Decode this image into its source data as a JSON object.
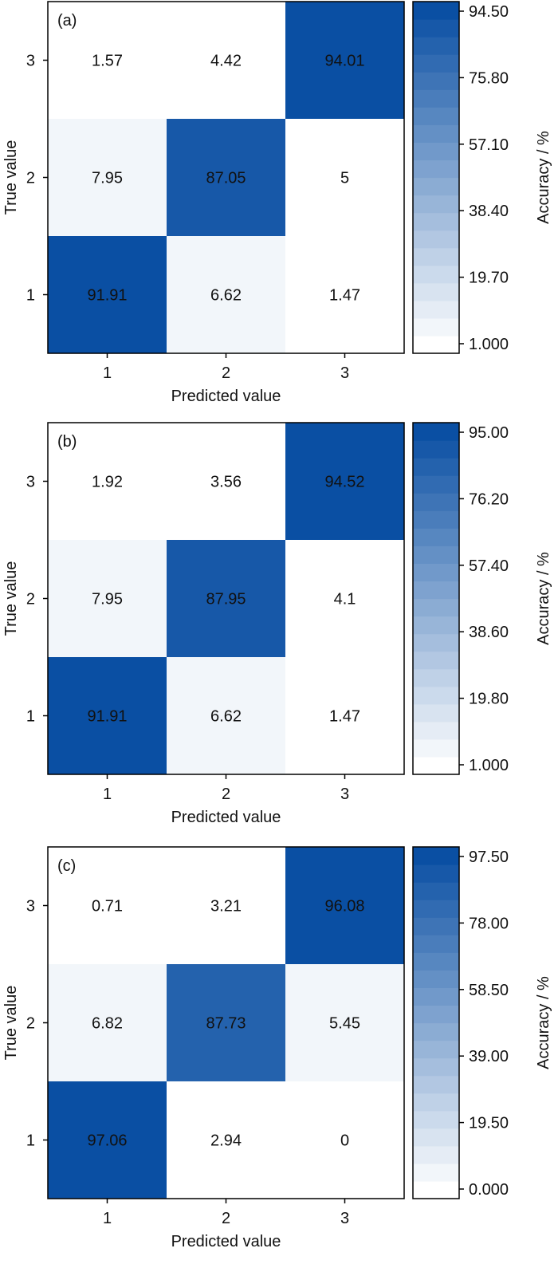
{
  "chart_data": [
    {
      "type": "heatmap",
      "panel_label": "(a)",
      "xlabel": "Predicted value",
      "ylabel": "True value",
      "x_categories": [
        "1",
        "2",
        "3"
      ],
      "y_categories": [
        "1",
        "2",
        "3"
      ],
      "matrix_rows_top_to_bottom": [
        {
          "true_value": "3",
          "values": [
            1.57,
            4.42,
            94.01
          ],
          "labels": [
            "1.57",
            "4.42",
            "94.01"
          ]
        },
        {
          "true_value": "2",
          "values": [
            7.95,
            87.05,
            5
          ],
          "labels": [
            "7.95",
            "87.05",
            "5"
          ]
        },
        {
          "true_value": "1",
          "values": [
            91.91,
            6.62,
            1.47
          ],
          "labels": [
            "91.91",
            "6.62",
            "1.47"
          ]
        }
      ],
      "colorbar": {
        "label": "Accuracy / %",
        "min": 1.0,
        "max": 94.5,
        "tick_labels_top_to_bottom": [
          "94.50",
          "75.80",
          "57.10",
          "38.40",
          "19.70",
          "1.000"
        ],
        "color_low": "#ffffff",
        "color_high": "#0a4fa3"
      }
    },
    {
      "type": "heatmap",
      "panel_label": "(b)",
      "xlabel": "Predicted value",
      "ylabel": "True value",
      "x_categories": [
        "1",
        "2",
        "3"
      ],
      "y_categories": [
        "1",
        "2",
        "3"
      ],
      "matrix_rows_top_to_bottom": [
        {
          "true_value": "3",
          "values": [
            1.92,
            3.56,
            94.52
          ],
          "labels": [
            "1.92",
            "3.56",
            "94.52"
          ]
        },
        {
          "true_value": "2",
          "values": [
            7.95,
            87.95,
            4.1
          ],
          "labels": [
            "7.95",
            "87.95",
            "4.1"
          ]
        },
        {
          "true_value": "1",
          "values": [
            91.91,
            6.62,
            1.47
          ],
          "labels": [
            "91.91",
            "6.62",
            "1.47"
          ]
        }
      ],
      "colorbar": {
        "label": "Accuracy / %",
        "min": 1.0,
        "max": 95.0,
        "tick_labels_top_to_bottom": [
          "95.00",
          "76.20",
          "57.40",
          "38.60",
          "19.80",
          "1.000"
        ],
        "color_low": "#ffffff",
        "color_high": "#0a4fa3"
      }
    },
    {
      "type": "heatmap",
      "panel_label": "(c)",
      "xlabel": "Predicted value",
      "ylabel": "True value",
      "x_categories": [
        "1",
        "2",
        "3"
      ],
      "y_categories": [
        "1",
        "2",
        "3"
      ],
      "matrix_rows_top_to_bottom": [
        {
          "true_value": "3",
          "values": [
            0.71,
            3.21,
            96.08
          ],
          "labels": [
            "0.71",
            "3.21",
            "96.08"
          ]
        },
        {
          "true_value": "2",
          "values": [
            6.82,
            87.73,
            5.45
          ],
          "labels": [
            "6.82",
            "87.73",
            "5.45"
          ]
        },
        {
          "true_value": "1",
          "values": [
            97.06,
            2.94,
            0
          ],
          "labels": [
            "97.06",
            "2.94",
            "0"
          ]
        }
      ],
      "colorbar": {
        "label": "Accuracy / %",
        "min": 0.0,
        "max": 97.5,
        "tick_labels_top_to_bottom": [
          "97.50",
          "78.00",
          "58.50",
          "39.00",
          "19.50",
          "0.000"
        ],
        "color_low": "#ffffff",
        "color_high": "#0a4fa3"
      }
    }
  ]
}
